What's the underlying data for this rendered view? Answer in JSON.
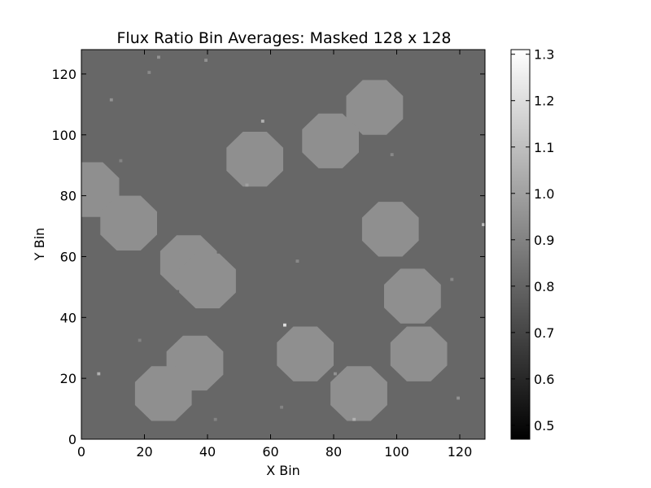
{
  "chart_data": {
    "type": "heatmap",
    "title": "Flux Ratio Bin Averages: Masked 128 x 128",
    "xlabel": "X Bin",
    "ylabel": "Y Bin",
    "xlim": [
      0,
      128
    ],
    "ylim": [
      0,
      128
    ],
    "grid": false,
    "x_ticks": [
      "0",
      "20",
      "40",
      "60",
      "80",
      "100",
      "120"
    ],
    "y_ticks": [
      "0",
      "20",
      "40",
      "60",
      "80",
      "100",
      "120"
    ],
    "colormap": "gray",
    "background_value": 0.81,
    "colorbar": {
      "range": [
        0.47,
        1.31
      ],
      "ticks": [
        "0.5",
        "0.6",
        "0.7",
        "0.8",
        "0.9",
        "1.0",
        "1.1",
        "1.2",
        "1.3"
      ]
    },
    "masked_regions": [
      {
        "cx": 93,
        "cy": 109,
        "r": 9,
        "value": 0.94
      },
      {
        "cx": 79,
        "cy": 98,
        "r": 9,
        "value": 0.94
      },
      {
        "cx": 55,
        "cy": 92,
        "r": 9,
        "value": 0.94
      },
      {
        "cx": 3,
        "cy": 82,
        "r": 9,
        "value": 0.94
      },
      {
        "cx": 15,
        "cy": 71,
        "r": 9,
        "value": 0.94
      },
      {
        "cx": 34,
        "cy": 58,
        "r": 9,
        "value": 0.94
      },
      {
        "cx": 40,
        "cy": 52,
        "r": 9,
        "value": 0.94
      },
      {
        "cx": 98,
        "cy": 69,
        "r": 9,
        "value": 0.94
      },
      {
        "cx": 105,
        "cy": 47,
        "r": 9,
        "value": 0.94
      },
      {
        "cx": 107,
        "cy": 28,
        "r": 9,
        "value": 0.94
      },
      {
        "cx": 71,
        "cy": 28,
        "r": 9,
        "value": 0.94
      },
      {
        "cx": 36,
        "cy": 25,
        "r": 9,
        "value": 0.94
      },
      {
        "cx": 26,
        "cy": 15,
        "r": 9,
        "value": 0.94
      },
      {
        "cx": 88,
        "cy": 15,
        "r": 9,
        "value": 0.94
      }
    ],
    "bright_pixels": [
      {
        "x": 24,
        "y": 125,
        "value": 0.95
      },
      {
        "x": 39,
        "y": 124,
        "value": 0.95
      },
      {
        "x": 9,
        "y": 111,
        "value": 0.95
      },
      {
        "x": 21,
        "y": 120,
        "value": 0.92
      },
      {
        "x": 57,
        "y": 104,
        "value": 1.05
      },
      {
        "x": 64,
        "y": 37,
        "value": 1.2
      },
      {
        "x": 5,
        "y": 21,
        "value": 1.05
      },
      {
        "x": 127,
        "y": 70,
        "value": 1.1
      },
      {
        "x": 52,
        "y": 83,
        "value": 1.0
      },
      {
        "x": 68,
        "y": 58,
        "value": 0.92
      },
      {
        "x": 117,
        "y": 52,
        "value": 0.92
      },
      {
        "x": 98,
        "y": 93,
        "value": 0.92
      },
      {
        "x": 80,
        "y": 21,
        "value": 0.95
      },
      {
        "x": 42,
        "y": 6,
        "value": 0.9
      },
      {
        "x": 63,
        "y": 10,
        "value": 0.9
      },
      {
        "x": 119,
        "y": 13,
        "value": 0.95
      },
      {
        "x": 12,
        "y": 91,
        "value": 0.9
      },
      {
        "x": 18,
        "y": 32,
        "value": 0.9
      },
      {
        "x": 86,
        "y": 6,
        "value": 1.05
      }
    ]
  }
}
